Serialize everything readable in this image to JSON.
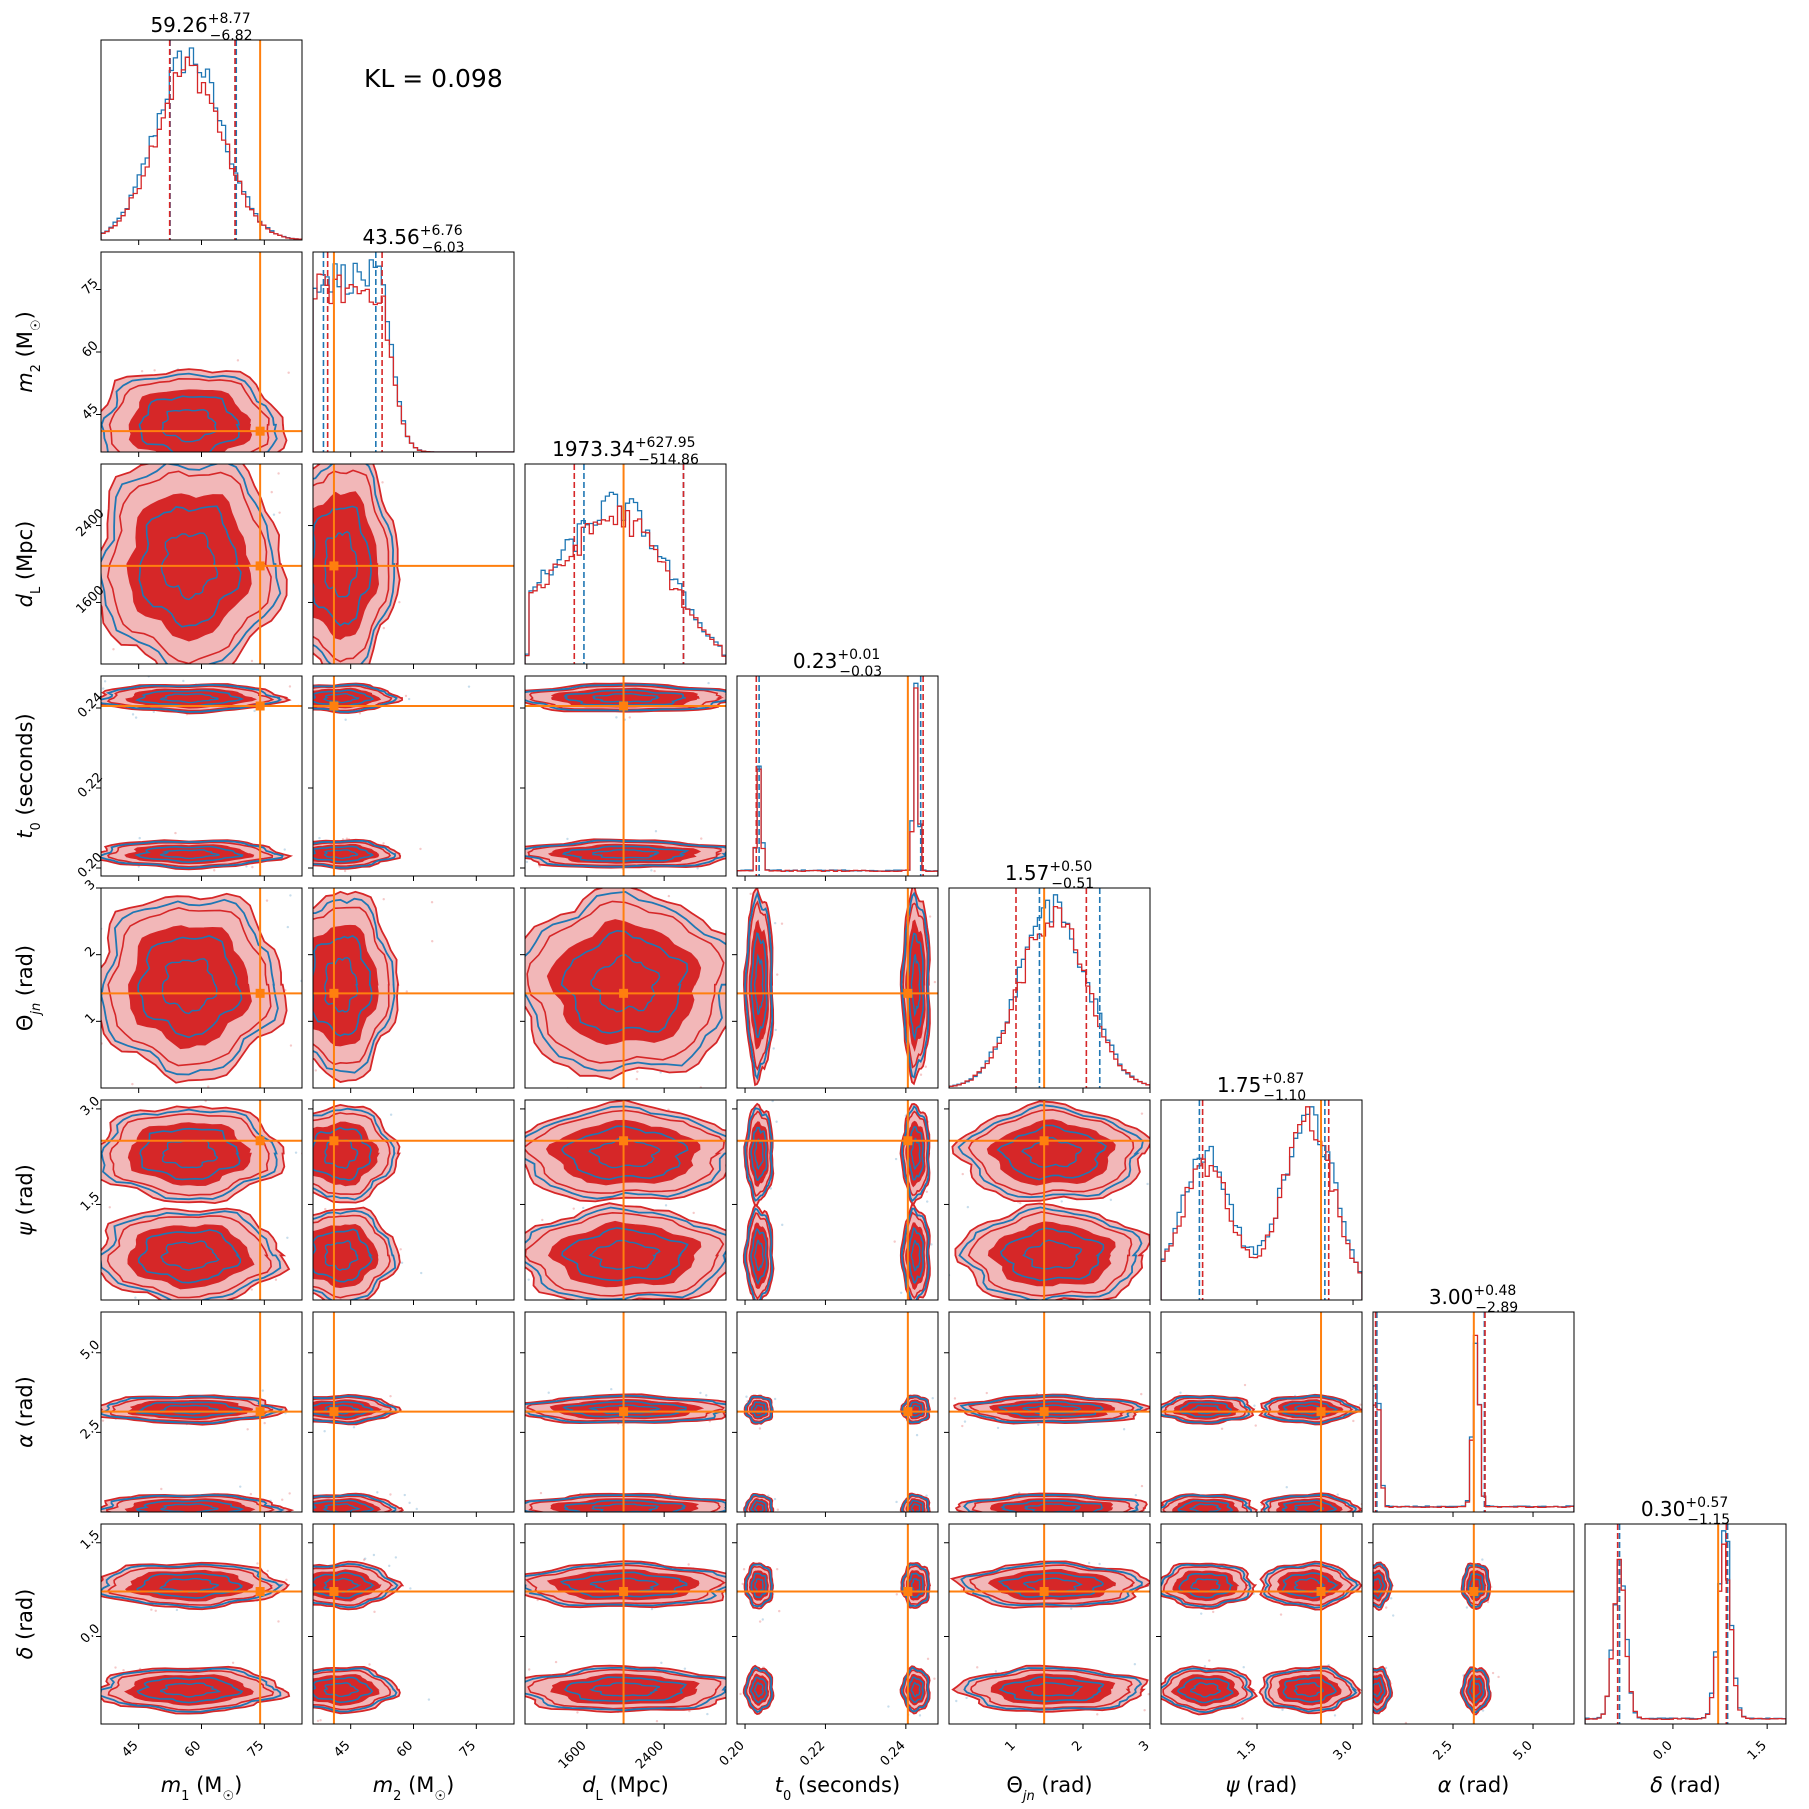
{
  "annotation": "KL = 0.098",
  "colors": {
    "blue": "#1f77b4",
    "red": "#d62728",
    "truth": "#ff7f0e",
    "fill_dark": "#d62728",
    "fill_light": "#f2b7b8"
  },
  "chart_data": {
    "type": "corner",
    "series": [
      {
        "color": "blue"
      },
      {
        "color": "red"
      }
    ],
    "parameters": [
      {
        "key": "m1",
        "label_html": "<tspan font-style='italic'>m</tspan><tspan baseline-shift='sub' font-size='13'>1</tspan> (M<tspan baseline-shift='sub' font-size='13'>☉</tspan>)",
        "range": [
          36,
          84
        ],
        "ticks": [
          45,
          60,
          75
        ],
        "tick_labels": [
          "45",
          "60",
          "75"
        ],
        "injected": 74,
        "summary": {
          "median": "59.26",
          "plus": "+8.77",
          "minus": "−6.82"
        },
        "quantiles_blue": [
          52.5,
          68.3
        ],
        "quantiles_red": [
          52.4,
          68.0
        ],
        "marginal": {
          "type": "peak",
          "mu": 57,
          "sigma": 8
        }
      },
      {
        "key": "m2",
        "label_html": "<tspan font-style='italic'>m</tspan><tspan baseline-shift='sub' font-size='13'>2</tspan> (M<tspan baseline-shift='sub' font-size='13'>☉</tspan>)",
        "range": [
          36,
          84
        ],
        "ticks": [
          45,
          60,
          75
        ],
        "tick_labels": [
          "45",
          "60",
          "75"
        ],
        "injected": 41,
        "summary": {
          "median": "43.56",
          "plus": "+6.76",
          "minus": "−6.03"
        },
        "quantiles_blue": [
          38.5,
          51.0
        ],
        "quantiles_red": [
          39.5,
          52.5
        ],
        "marginal": {
          "type": "flat-drop",
          "edge": 51,
          "sigma": 3.5
        }
      },
      {
        "key": "dL",
        "label_html": "<tspan font-style='italic'>d</tspan><tspan baseline-shift='sub' font-size='13'>L</tspan> (Mpc)",
        "range": [
          960,
          3040
        ],
        "ticks": [
          1600,
          2400
        ],
        "tick_labels": [
          "1600",
          "2400"
        ],
        "injected": 1980,
        "summary": {
          "median": "1973.34",
          "plus": "+627.95",
          "minus": "−514.86"
        },
        "quantiles_blue": [
          1570,
          2600
        ],
        "quantiles_red": [
          1470,
          2600
        ],
        "marginal": {
          "type": "broad",
          "mu": 1950,
          "sigma": 500
        }
      },
      {
        "key": "t0",
        "label_html": "<tspan font-style='italic'>t</tspan><tspan baseline-shift='sub' font-size='13'>0</tspan> (seconds)",
        "range": [
          0.198,
          0.248
        ],
        "ticks": [
          0.2,
          0.22,
          0.24
        ],
        "tick_labels": [
          "0.20",
          "0.22",
          "0.24"
        ],
        "injected": 0.2405,
        "summary": {
          "median": "0.23",
          "plus": "+0.01",
          "minus": "−0.03"
        },
        "quantiles_blue": [
          0.2035,
          0.2437
        ],
        "quantiles_red": [
          0.2028,
          0.2443
        ],
        "marginal": {
          "type": "bimodal",
          "a": 0.2035,
          "b": 0.2425,
          "sigma": 0.0006,
          "wa": 0.55,
          "wb": 1.0
        }
      },
      {
        "key": "thetajn",
        "label_html": "Θ<tspan baseline-shift='sub' font-size='13' font-style='italic'>jn</tspan> (rad)",
        "range": [
          0.0,
          3.0
        ],
        "ticks": [
          1,
          2,
          3
        ],
        "tick_labels": [
          "1",
          "2",
          "3"
        ],
        "injected": 1.42,
        "summary": {
          "median": "1.57",
          "plus": "+0.50",
          "minus": "−0.51"
        },
        "quantiles_blue": [
          1.35,
          2.25
        ],
        "quantiles_red": [
          1.0,
          2.05
        ],
        "marginal": {
          "type": "peak",
          "mu": 1.55,
          "sigma": 0.5
        }
      },
      {
        "key": "psi",
        "label_html": "<tspan font-style='italic'>ψ</tspan> (rad)",
        "range": [
          0.0,
          3.14
        ],
        "ticks": [
          1.5,
          3.0
        ],
        "tick_labels": [
          "1.5",
          "3.0"
        ],
        "injected": 2.5,
        "summary": {
          "median": "1.75",
          "plus": "+0.87",
          "minus": "−1.10"
        },
        "quantiles_blue": [
          0.6,
          2.56
        ],
        "quantiles_red": [
          0.65,
          2.62
        ],
        "marginal": {
          "type": "bimodal",
          "a": 0.7,
          "b": 2.3,
          "sigma": 0.4,
          "wa": 0.75,
          "wb": 1.0
        }
      },
      {
        "key": "alpha",
        "label_html": "<tspan font-style='italic'>α</tspan> (rad)",
        "range": [
          0.0,
          6.28
        ],
        "ticks": [
          2.5,
          5.0
        ],
        "tick_labels": [
          "2.5",
          "5.0"
        ],
        "injected": 3.15,
        "summary": {
          "median": "3.00",
          "plus": "+0.48",
          "minus": "−2.89"
        },
        "quantiles_blue": [
          0.12,
          3.48
        ],
        "quantiles_red": [
          0.08,
          3.5
        ],
        "marginal": {
          "type": "bimodal",
          "a": 0.12,
          "b": 3.22,
          "sigma": 0.1,
          "wa": 0.7,
          "wb": 1.0
        }
      },
      {
        "key": "delta",
        "label_html": "<tspan font-style='italic'>δ</tspan> (rad)",
        "range": [
          -1.4,
          1.8
        ],
        "ticks": [
          0.0,
          1.5
        ],
        "tick_labels": [
          "0.0",
          "1.5"
        ],
        "injected": 0.72,
        "summary": {
          "median": "0.30",
          "plus": "+0.57",
          "minus": "−1.15"
        },
        "quantiles_blue": [
          -0.85,
          0.87
        ],
        "quantiles_red": [
          -0.88,
          0.85
        ],
        "marginal": {
          "type": "bimodal",
          "a": -0.85,
          "b": 0.82,
          "sigma": 0.1,
          "wa": 0.85,
          "wb": 1.0
        }
      }
    ]
  }
}
